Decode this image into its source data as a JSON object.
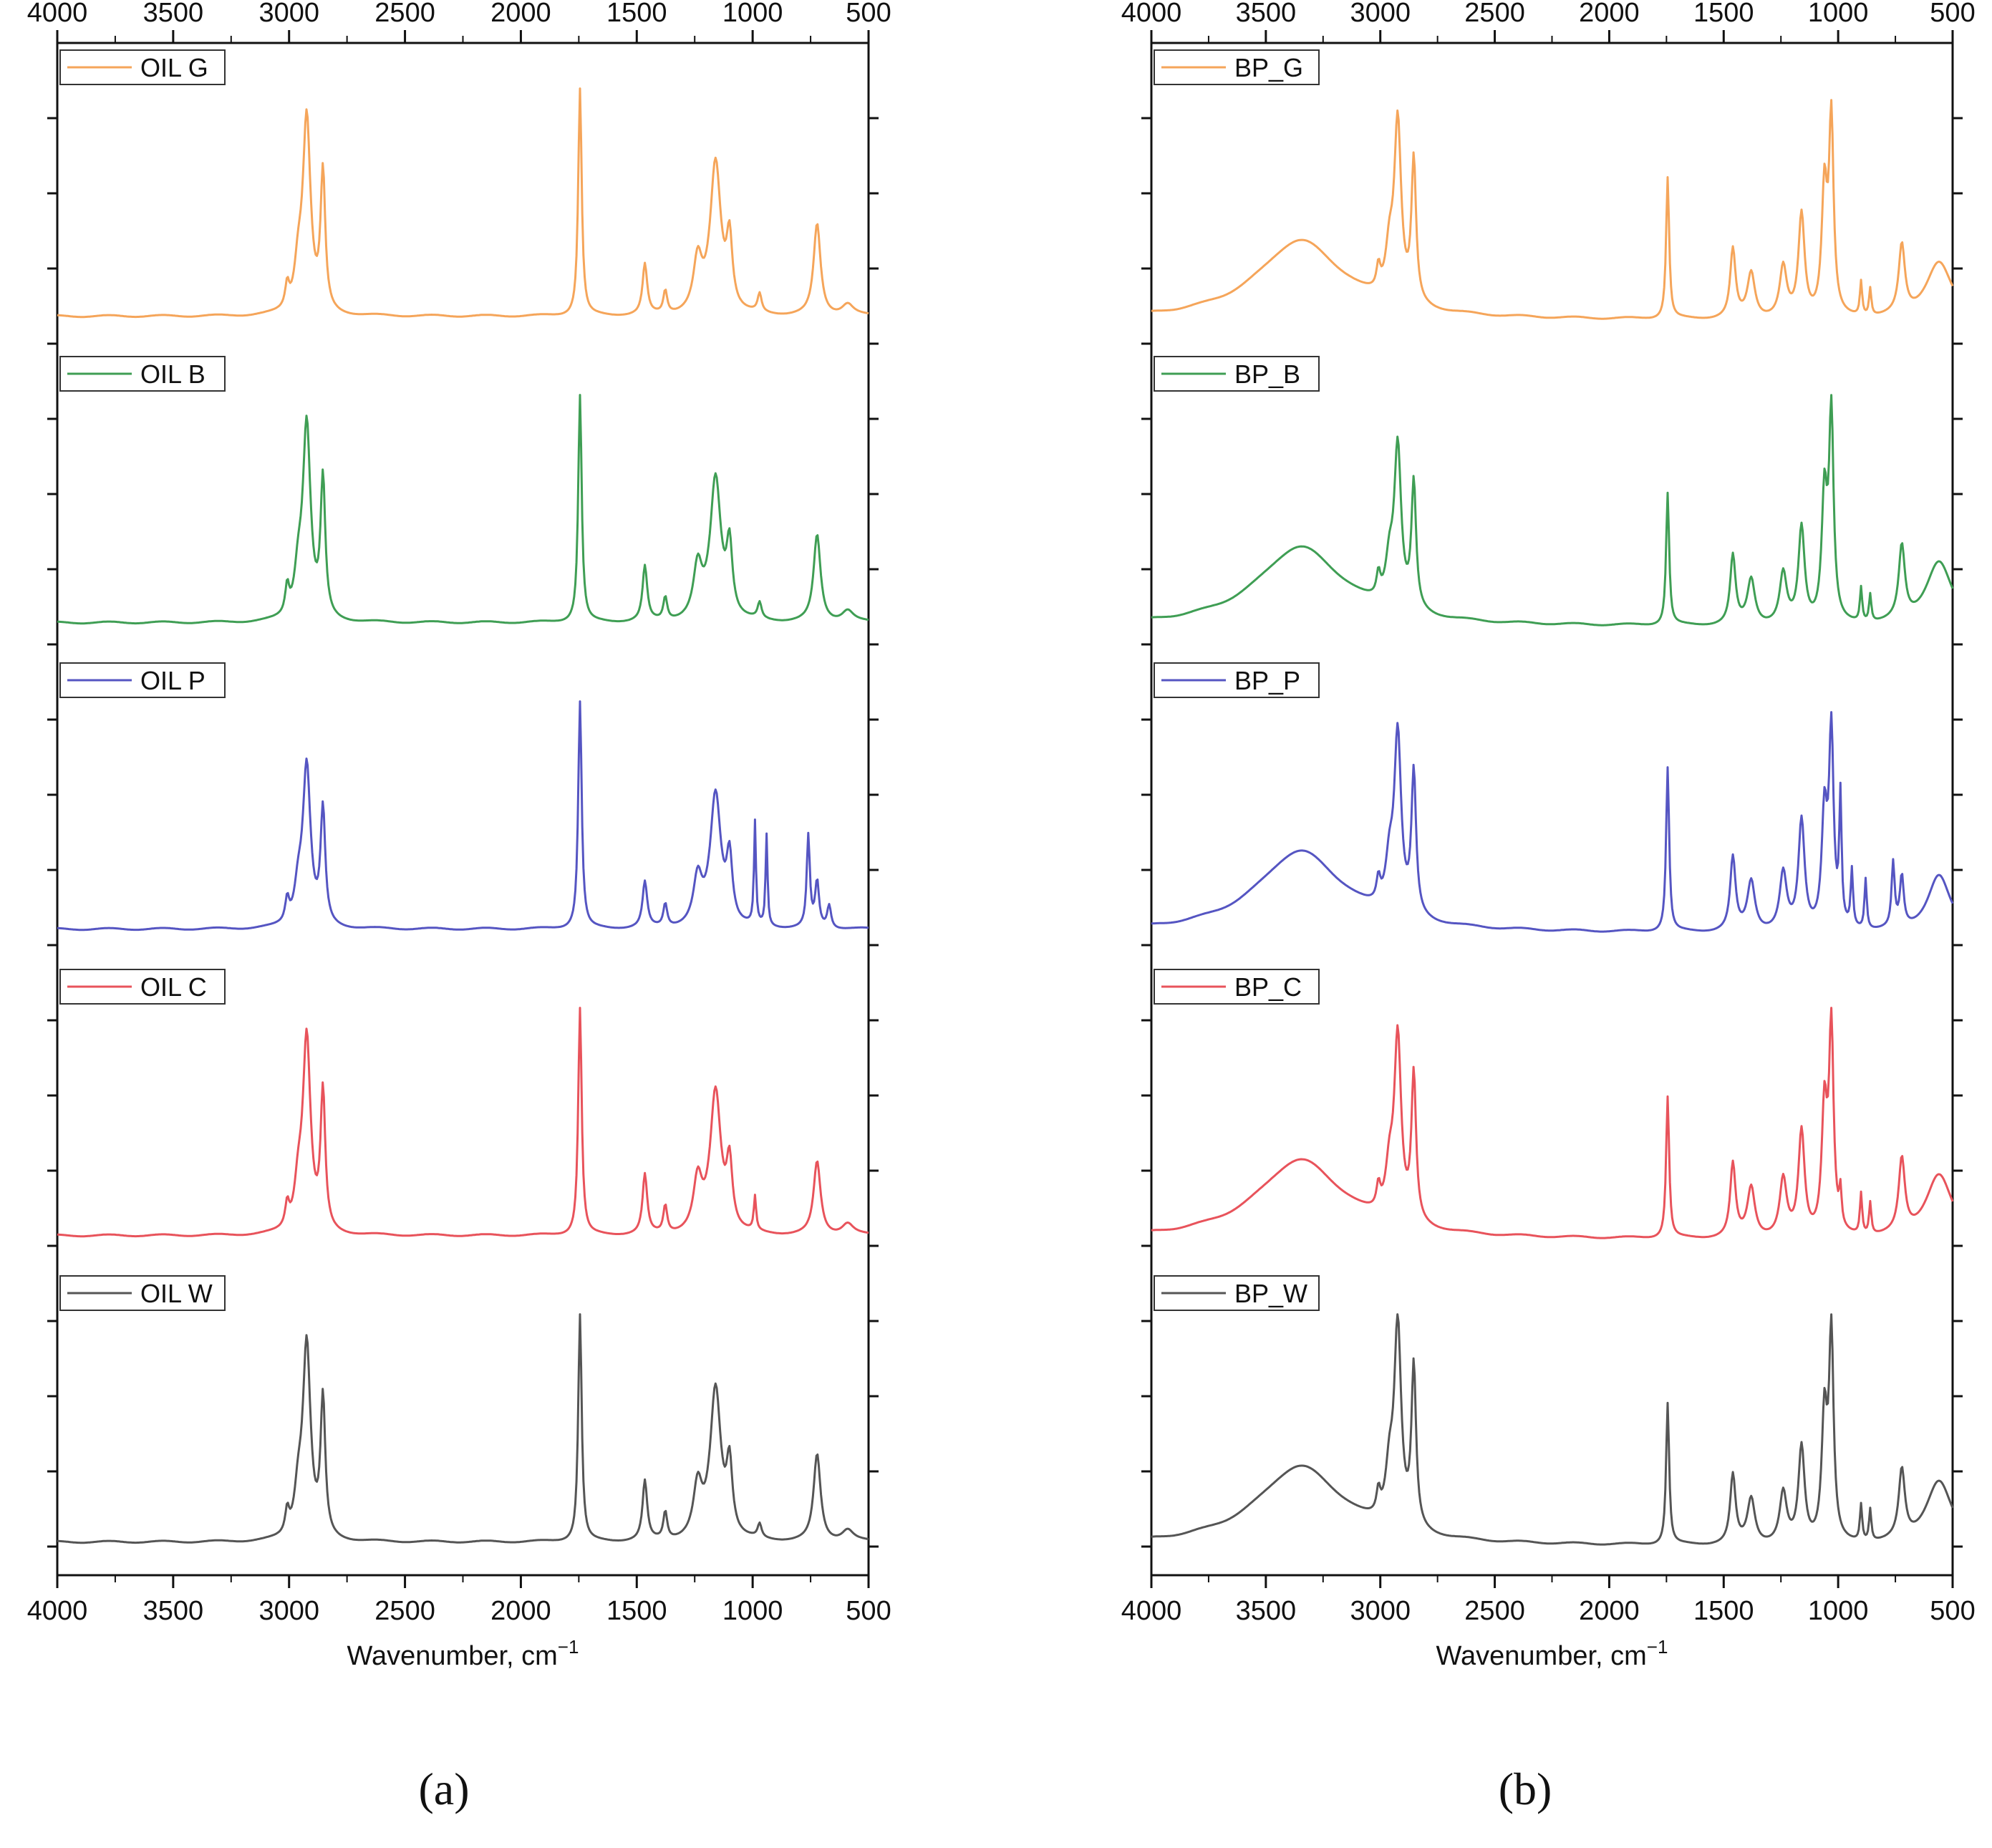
{
  "chart_data": [
    {
      "type": "line",
      "panel_label": "(a)",
      "xlabel": "Wavenumber, cm",
      "xlabel_sup": "−1",
      "xlim": [
        4000,
        500
      ],
      "xticks": [
        "4000",
        "3500",
        "3000",
        "2500",
        "2000",
        "1500",
        "1000",
        "500"
      ],
      "x_tick_values": [
        4000,
        3500,
        3000,
        2500,
        2000,
        1500,
        1000,
        500
      ],
      "yticks_shown": false,
      "stacked": true,
      "series": [
        {
          "name": "OIL G",
          "color": "#f5a55a",
          "baseline": 0.02,
          "peaks": [
            [
              3008,
              0.1,
              10
            ],
            [
              2924,
              0.85,
              20
            ],
            [
              2854,
              0.6,
              12
            ],
            [
              2960,
              0.18,
              20
            ],
            [
              1745,
              1.0,
              9
            ],
            [
              1465,
              0.22,
              12
            ],
            [
              1377,
              0.1,
              10
            ],
            [
              1237,
              0.22,
              22
            ],
            [
              1160,
              0.66,
              28
            ],
            [
              1100,
              0.3,
              15
            ],
            [
              970,
              0.08,
              10
            ],
            [
              722,
              0.4,
              18
            ],
            [
              590,
              0.05,
              30
            ]
          ]
        },
        {
          "name": "OIL B",
          "color": "#3f9e54",
          "baseline": 0.02,
          "peaks": [
            [
              3008,
              0.12,
              10
            ],
            [
              2924,
              0.85,
              20
            ],
            [
              2854,
              0.6,
              12
            ],
            [
              2960,
              0.18,
              20
            ],
            [
              1745,
              1.0,
              9
            ],
            [
              1465,
              0.24,
              12
            ],
            [
              1377,
              0.1,
              10
            ],
            [
              1237,
              0.22,
              22
            ],
            [
              1160,
              0.62,
              28
            ],
            [
              1100,
              0.3,
              15
            ],
            [
              970,
              0.07,
              10
            ],
            [
              722,
              0.38,
              18
            ],
            [
              590,
              0.05,
              30
            ]
          ]
        },
        {
          "name": "OIL P",
          "color": "#5555c2",
          "baseline": 0.02,
          "peaks": [
            [
              3008,
              0.1,
              10
            ],
            [
              2924,
              0.7,
              20
            ],
            [
              2854,
              0.5,
              12
            ],
            [
              2960,
              0.15,
              20
            ],
            [
              1745,
              1.0,
              9
            ],
            [
              1465,
              0.2,
              12
            ],
            [
              1377,
              0.1,
              10
            ],
            [
              1237,
              0.2,
              22
            ],
            [
              1160,
              0.58,
              28
            ],
            [
              1100,
              0.28,
              15
            ],
            [
              990,
              0.45,
              5
            ],
            [
              940,
              0.4,
              5
            ],
            [
              760,
              0.4,
              8
            ],
            [
              722,
              0.2,
              10
            ],
            [
              670,
              0.1,
              10
            ]
          ]
        },
        {
          "name": "OIL C",
          "color": "#e8535b",
          "baseline": 0.02,
          "peaks": [
            [
              3008,
              0.1,
              10
            ],
            [
              2924,
              0.85,
              20
            ],
            [
              2854,
              0.6,
              12
            ],
            [
              2960,
              0.18,
              20
            ],
            [
              1745,
              1.0,
              9
            ],
            [
              1465,
              0.26,
              12
            ],
            [
              1377,
              0.12,
              10
            ],
            [
              1237,
              0.22,
              22
            ],
            [
              1160,
              0.62,
              28
            ],
            [
              1100,
              0.28,
              15
            ],
            [
              990,
              0.15,
              6
            ],
            [
              722,
              0.32,
              18
            ],
            [
              590,
              0.05,
              30
            ]
          ]
        },
        {
          "name": "OIL W",
          "color": "#555555",
          "baseline": 0.02,
          "peaks": [
            [
              3008,
              0.1,
              10
            ],
            [
              2924,
              0.85,
              20
            ],
            [
              2854,
              0.6,
              12
            ],
            [
              2960,
              0.18,
              20
            ],
            [
              1745,
              1.0,
              9
            ],
            [
              1465,
              0.26,
              12
            ],
            [
              1377,
              0.12,
              10
            ],
            [
              1237,
              0.22,
              22
            ],
            [
              1160,
              0.66,
              28
            ],
            [
              1100,
              0.3,
              15
            ],
            [
              970,
              0.06,
              10
            ],
            [
              722,
              0.38,
              18
            ],
            [
              590,
              0.05,
              30
            ]
          ]
        }
      ]
    },
    {
      "type": "line",
      "panel_label": "(b)",
      "xlabel": "Wavenumber, cm",
      "xlabel_sup": "−1",
      "xlim": [
        4000,
        500
      ],
      "xticks": [
        "4000",
        "3500",
        "3000",
        "2500",
        "2000",
        "1500",
        "1000",
        "500"
      ],
      "x_tick_values": [
        4000,
        3500,
        3000,
        2500,
        2000,
        1500,
        1000,
        500
      ],
      "yticks_shown": false,
      "stacked": true,
      "series": [
        {
          "name": "BP_G",
          "color": "#f5a55a",
          "baseline": 0.0,
          "peaks": [
            [
              3350,
              0.35,
              230
            ],
            [
              3008,
              0.1,
              10
            ],
            [
              2924,
              0.78,
              18
            ],
            [
              2854,
              0.62,
              12
            ],
            [
              2960,
              0.2,
              20
            ],
            [
              1745,
              0.62,
              8
            ],
            [
              1460,
              0.3,
              14
            ],
            [
              1380,
              0.2,
              20
            ],
            [
              1240,
              0.22,
              18
            ],
            [
              1160,
              0.45,
              16
            ],
            [
              1060,
              0.55,
              14
            ],
            [
              1030,
              0.85,
              12
            ],
            [
              900,
              0.15,
              6
            ],
            [
              860,
              0.12,
              6
            ],
            [
              722,
              0.3,
              16
            ],
            [
              560,
              0.25,
              70
            ]
          ]
        },
        {
          "name": "BP_B",
          "color": "#3f9e54",
          "baseline": 0.0,
          "peaks": [
            [
              3350,
              0.35,
              230
            ],
            [
              3008,
              0.1,
              10
            ],
            [
              2924,
              0.7,
              18
            ],
            [
              2854,
              0.55,
              12
            ],
            [
              2960,
              0.18,
              20
            ],
            [
              1745,
              0.58,
              8
            ],
            [
              1460,
              0.3,
              14
            ],
            [
              1380,
              0.2,
              20
            ],
            [
              1240,
              0.22,
              18
            ],
            [
              1160,
              0.42,
              16
            ],
            [
              1060,
              0.55,
              14
            ],
            [
              1030,
              0.9,
              12
            ],
            [
              900,
              0.15,
              6
            ],
            [
              860,
              0.12,
              6
            ],
            [
              722,
              0.32,
              16
            ],
            [
              560,
              0.28,
              70
            ]
          ]
        },
        {
          "name": "BP_P",
          "color": "#5555c2",
          "baseline": 0.0,
          "peaks": [
            [
              3350,
              0.36,
              230
            ],
            [
              3008,
              0.1,
              10
            ],
            [
              2924,
              0.78,
              18
            ],
            [
              2854,
              0.62,
              12
            ],
            [
              2960,
              0.2,
              20
            ],
            [
              1745,
              0.72,
              8
            ],
            [
              1460,
              0.32,
              14
            ],
            [
              1380,
              0.22,
              20
            ],
            [
              1240,
              0.25,
              18
            ],
            [
              1160,
              0.48,
              16
            ],
            [
              1060,
              0.5,
              14
            ],
            [
              1030,
              0.85,
              12
            ],
            [
              990,
              0.55,
              6
            ],
            [
              940,
              0.25,
              6
            ],
            [
              880,
              0.22,
              6
            ],
            [
              760,
              0.28,
              8
            ],
            [
              722,
              0.22,
              10
            ],
            [
              560,
              0.25,
              60
            ]
          ]
        },
        {
          "name": "BP_C",
          "color": "#e8535b",
          "baseline": 0.0,
          "peaks": [
            [
              3350,
              0.35,
              230
            ],
            [
              3008,
              0.1,
              10
            ],
            [
              2924,
              0.8,
              18
            ],
            [
              2854,
              0.64,
              12
            ],
            [
              2960,
              0.2,
              20
            ],
            [
              1745,
              0.62,
              8
            ],
            [
              1460,
              0.32,
              14
            ],
            [
              1380,
              0.22,
              20
            ],
            [
              1240,
              0.25,
              18
            ],
            [
              1160,
              0.46,
              16
            ],
            [
              1060,
              0.55,
              14
            ],
            [
              1030,
              0.9,
              12
            ],
            [
              990,
              0.15,
              6
            ],
            [
              900,
              0.18,
              6
            ],
            [
              860,
              0.14,
              6
            ],
            [
              722,
              0.32,
              16
            ],
            [
              560,
              0.28,
              70
            ]
          ]
        },
        {
          "name": "BP_W",
          "color": "#555555",
          "baseline": 0.0,
          "peaks": [
            [
              3350,
              0.35,
              230
            ],
            [
              3008,
              0.1,
              10
            ],
            [
              2924,
              0.88,
              18
            ],
            [
              2854,
              0.7,
              12
            ],
            [
              2960,
              0.22,
              20
            ],
            [
              1745,
              0.62,
              8
            ],
            [
              1460,
              0.3,
              14
            ],
            [
              1380,
              0.2,
              20
            ],
            [
              1240,
              0.22,
              18
            ],
            [
              1160,
              0.42,
              16
            ],
            [
              1060,
              0.55,
              14
            ],
            [
              1030,
              0.9,
              12
            ],
            [
              900,
              0.16,
              6
            ],
            [
              860,
              0.14,
              6
            ],
            [
              722,
              0.3,
              16
            ],
            [
              560,
              0.28,
              70
            ]
          ]
        }
      ]
    }
  ]
}
